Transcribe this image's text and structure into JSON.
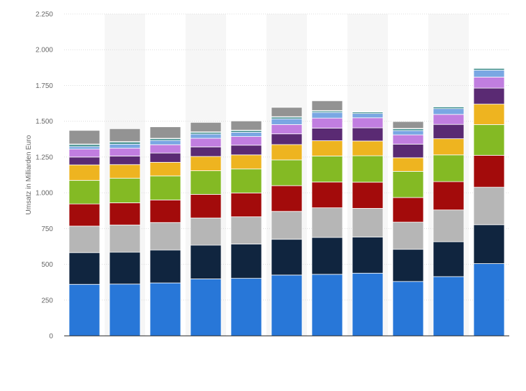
{
  "chart_data": {
    "type": "bar",
    "stacked": true,
    "ylabel": "Umsatz in Milliarden Euro",
    "xlabel": "",
    "ylim": [
      0,
      2250
    ],
    "yticks": [
      0,
      250,
      500,
      750,
      1000,
      1250,
      1500,
      1750,
      2000,
      2250
    ],
    "ytick_labels": [
      "0",
      "250",
      "500",
      "750",
      "1.000",
      "1.250",
      "1.500",
      "1.750",
      "2.000",
      "2.250"
    ],
    "categories": [
      "",
      "",
      "",
      "",
      "",
      "",
      "",
      "",
      "",
      "",
      ""
    ],
    "grid": true,
    "legend": "none",
    "colors": [
      "#2877d8",
      "#10253f",
      "#b6b6b6",
      "#a30b0b",
      "#84ba24",
      "#eeb420",
      "#5a2a73",
      "#c17ee0",
      "#7aa7e3",
      "#3c8c8c",
      "#0a6b3d",
      "#939393"
    ],
    "series": [
      {
        "values": [
          360,
          362,
          370,
          398,
          402,
          425,
          430,
          438,
          380,
          414,
          505
        ]
      },
      {
        "values": [
          222,
          223,
          230,
          236,
          240,
          250,
          258,
          253,
          225,
          244,
          272
        ]
      },
      {
        "values": [
          185,
          190,
          192,
          190,
          190,
          195,
          207,
          200,
          190,
          222,
          262
        ]
      },
      {
        "values": [
          155,
          155,
          158,
          165,
          167,
          180,
          180,
          183,
          172,
          198,
          223
        ]
      },
      {
        "values": [
          165,
          172,
          168,
          165,
          168,
          180,
          182,
          185,
          183,
          187,
          215
        ]
      },
      {
        "values": [
          108,
          95,
          95,
          100,
          98,
          107,
          107,
          103,
          95,
          113,
          143
        ]
      },
      {
        "values": [
          55,
          60,
          65,
          67,
          68,
          75,
          88,
          92,
          95,
          100,
          112
        ]
      },
      {
        "values": [
          55,
          55,
          58,
          60,
          60,
          65,
          70,
          70,
          65,
          70,
          77
        ]
      },
      {
        "values": [
          18,
          28,
          30,
          30,
          30,
          40,
          40,
          30,
          30,
          40,
          48
        ]
      },
      {
        "values": [
          15,
          15,
          12,
          12,
          12,
          12,
          10,
          10,
          12,
          12,
          12
        ]
      },
      {
        "values": [
          3,
          3,
          3,
          3,
          3,
          3,
          3,
          3,
          3,
          3,
          3
        ]
      },
      {
        "values": [
          95,
          90,
          80,
          66,
          64,
          65,
          68,
          0,
          48,
          0,
          0
        ]
      }
    ]
  }
}
